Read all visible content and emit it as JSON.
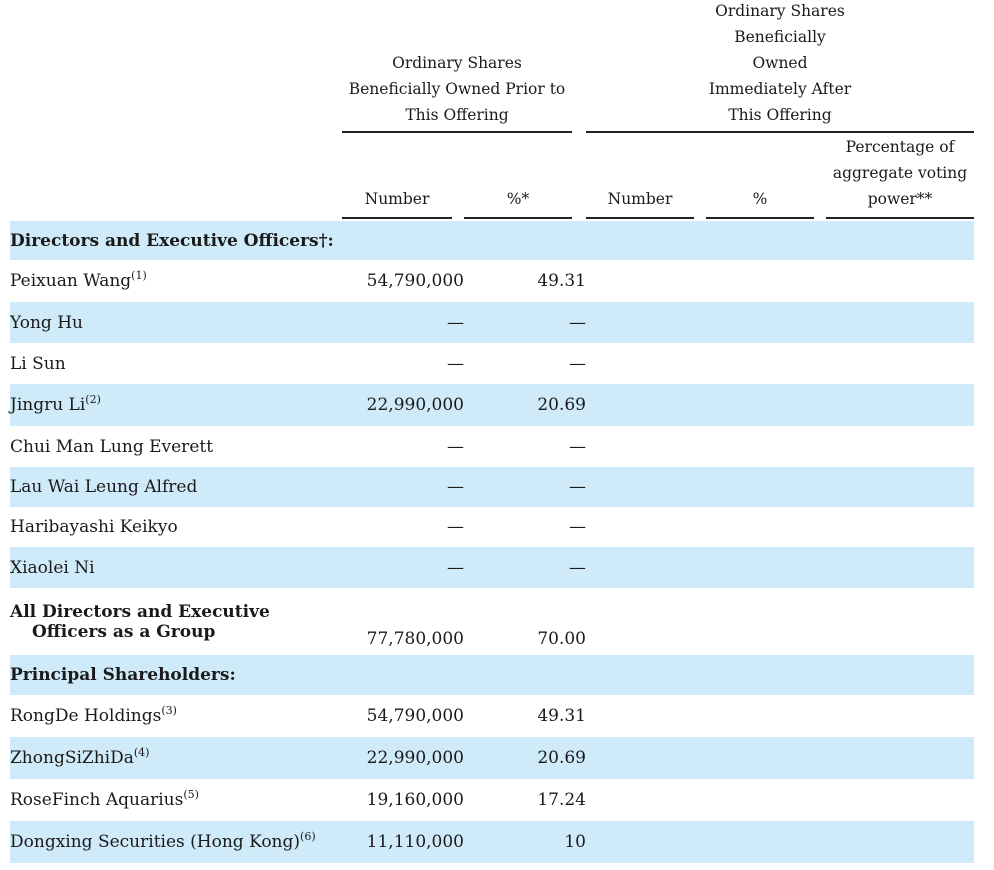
{
  "header": {
    "prior_group": [
      "Ordinary Shares",
      "Beneficially Owned Prior to",
      "This Offering"
    ],
    "after_group": [
      "Ordinary Shares",
      "Beneficially",
      "Owned",
      "Immediately After",
      "This Offering"
    ],
    "col_number_prior": "Number",
    "col_pct_prior": "%*",
    "col_number_after": "Number",
    "col_pct_after": "%",
    "col_voting": [
      "Percentage of",
      "aggregate voting",
      "power**"
    ]
  },
  "sections": {
    "directors": "Directors and Executive Officers†:",
    "principal": "Principal Shareholders:"
  },
  "rows": [
    {
      "name": "Peixuan Wang",
      "note": "(1)",
      "number": "54,790,000",
      "pct": "49.31"
    },
    {
      "name": "Yong Hu",
      "note": "",
      "number": "—",
      "pct": "—"
    },
    {
      "name": "Li Sun",
      "note": "",
      "number": "—",
      "pct": "—"
    },
    {
      "name": "Jingru Li",
      "note": "(2)",
      "number": "22,990,000",
      "pct": "20.69"
    },
    {
      "name": "Chui Man Lung Everett",
      "note": "",
      "number": "—",
      "pct": "—"
    },
    {
      "name": "Lau Wai Leung Alfred",
      "note": "",
      "number": "—",
      "pct": "—"
    },
    {
      "name": "Haribayashi Keikyo",
      "note": "",
      "number": "—",
      "pct": "—"
    },
    {
      "name": "Xiaolei Ni",
      "note": "",
      "number": "—",
      "pct": "—"
    }
  ],
  "group_total": {
    "line1": "All Directors and Executive",
    "line2": "Officers as a Group",
    "number": "77,780,000",
    "pct": "70.00"
  },
  "principal_rows": [
    {
      "name": "RongDe Holdings",
      "note": "(3)",
      "number": "54,790,000",
      "pct": "49.31"
    },
    {
      "name": "ZhongSiZhiDa",
      "note": "(4)",
      "number": "22,990,000",
      "pct": "20.69"
    },
    {
      "name": "RoseFinch Aquarius",
      "note": "(5)",
      "number": "19,160,000",
      "pct": "17.24"
    },
    {
      "name": "Dongxing Securities (Hong Kong)",
      "note": "(6)",
      "number": "11,110,000",
      "pct": "10"
    }
  ]
}
